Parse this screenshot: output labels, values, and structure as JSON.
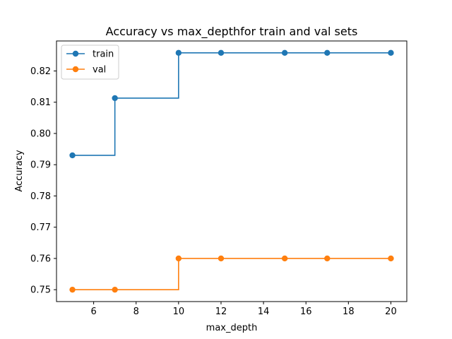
{
  "chart_data": {
    "type": "line",
    "step": "post",
    "title": "Accuracy vs max_depthfor train and val sets",
    "xlabel": "max_depth",
    "ylabel": "Accuracy",
    "xlim": [
      4.25,
      20.75
    ],
    "ylim": [
      0.7462,
      0.8296
    ],
    "xticks": [
      6,
      8,
      10,
      12,
      14,
      16,
      18,
      20
    ],
    "xtick_labels": [
      "6",
      "8",
      "10",
      "12",
      "14",
      "16",
      "18",
      "20"
    ],
    "yticks": [
      0.75,
      0.76,
      0.77,
      0.78,
      0.79,
      0.8,
      0.81,
      0.82
    ],
    "ytick_labels": [
      "0.75",
      "0.76",
      "0.77",
      "0.78",
      "0.79",
      "0.80",
      "0.81",
      "0.82"
    ],
    "grid": false,
    "legend_position": "top-left",
    "x": [
      5,
      7,
      10,
      12,
      15,
      17,
      20
    ],
    "series": [
      {
        "name": "train",
        "color": "#1f77b4",
        "values": [
          0.793,
          0.8113,
          0.8258,
          0.8258,
          0.8258,
          0.8258,
          0.8258
        ]
      },
      {
        "name": "val",
        "color": "#ff7f0e",
        "values": [
          0.75,
          0.75,
          0.76,
          0.76,
          0.76,
          0.76,
          0.76
        ]
      }
    ]
  }
}
